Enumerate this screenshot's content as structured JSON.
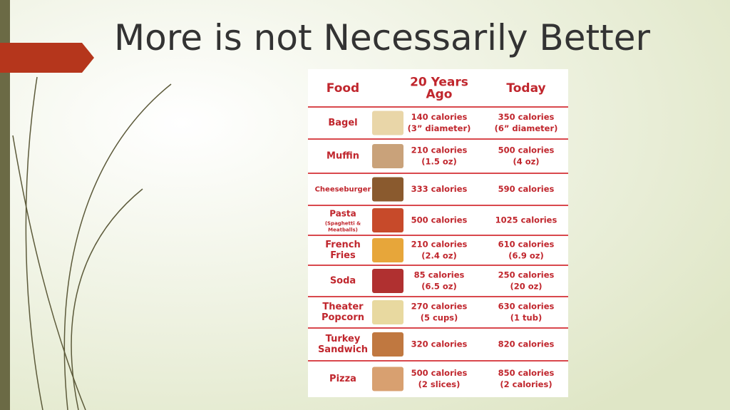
{
  "title": "More is not Necessarily Better",
  "table": {
    "header": [
      [
        "Food"
      ],
      [
        "20 Years",
        "Ago"
      ],
      [
        "Today"
      ]
    ],
    "rows": [
      {
        "food": [
          "Bagel"
        ],
        "then": [
          "140 calories",
          "(3” diameter)"
        ],
        "today": [
          "350 calories",
          "(6” diameter)"
        ]
      },
      {
        "food": [
          "Muffin"
        ],
        "then": [
          "210 calories",
          "(1.5 oz)"
        ],
        "today": [
          "500 calories",
          "(4 oz)"
        ]
      },
      {
        "food": [
          "Cheeseburger"
        ],
        "then": [
          "333 calories"
        ],
        "today": [
          "590 calories"
        ]
      },
      {
        "food": [
          "Pasta"
        ],
        "note": [
          "(Spaghetti &",
          "Meatballs)"
        ],
        "then": [
          "500 calories"
        ],
        "today": [
          "1025 calories"
        ]
      },
      {
        "food": [
          "French",
          "Fries"
        ],
        "then": [
          "210 calories",
          "(2.4 oz)"
        ],
        "today": [
          "610 calories",
          "(6.9 oz)"
        ]
      },
      {
        "food": [
          "Soda"
        ],
        "then": [
          "85 calories",
          "(6.5 oz)"
        ],
        "today": [
          "250 calories",
          "(20 oz)"
        ]
      },
      {
        "food": [
          "Theater",
          "Popcorn"
        ],
        "then": [
          "270 calories",
          "(5 cups)"
        ],
        "today": [
          "630 calories",
          "(1 tub)"
        ]
      },
      {
        "food": [
          "Turkey",
          "Sandwich"
        ],
        "then": [
          "320 calories"
        ],
        "today": [
          "820 calories"
        ]
      },
      {
        "food": [
          "Pizza"
        ],
        "then": [
          "500 calories",
          "(2 slices)"
        ],
        "today": [
          "850 calories",
          "(2 calories)"
        ]
      }
    ]
  }
}
